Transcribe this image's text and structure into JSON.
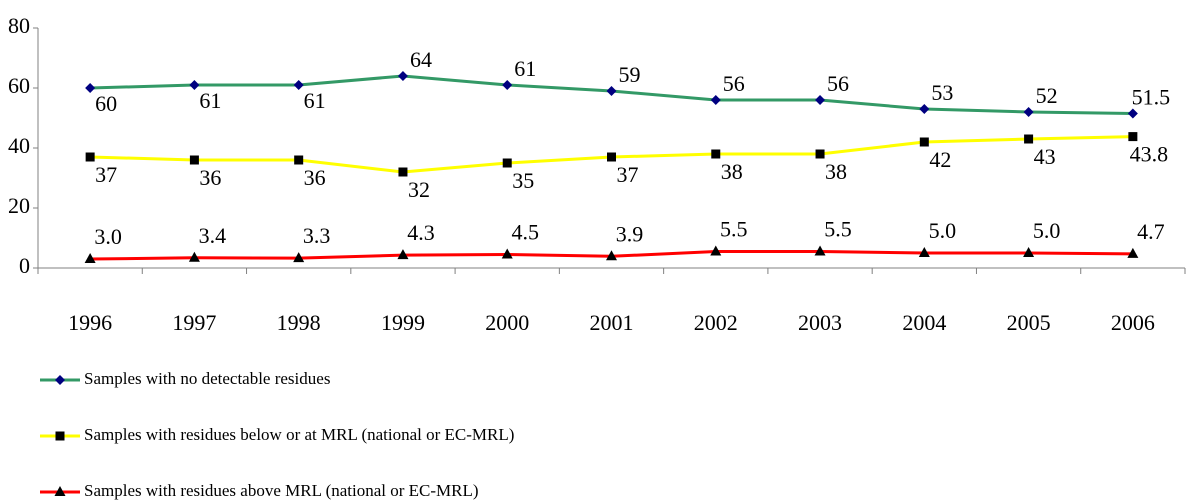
{
  "chart_data": {
    "type": "line",
    "categories": [
      "1996",
      "1997",
      "1998",
      "1999",
      "2000",
      "2001",
      "2002",
      "2003",
      "2004",
      "2005",
      "2006"
    ],
    "series": [
      {
        "name": "Samples with no detectable residues",
        "color": "#339966",
        "marker": "diamond",
        "marker_color": "#000080",
        "values": [
          60,
          61,
          61,
          64,
          61,
          59,
          56,
          56,
          53,
          52,
          51.5
        ]
      },
      {
        "name": "Samples with residues below or at MRL (national or EC-MRL)",
        "color": "#ffff00",
        "marker": "square",
        "marker_color": "#000000",
        "values": [
          37,
          36,
          36,
          32,
          35,
          37,
          38,
          38,
          42,
          43,
          43.8
        ]
      },
      {
        "name": "Samples with residues above MRL (national or EC-MRL)",
        "color": "#ff0000",
        "marker": "triangle",
        "marker_color": "#000000",
        "values": [
          3,
          3.4,
          3.3,
          4.3,
          4.5,
          3.9,
          5.5,
          5.5,
          5,
          5,
          4.7
        ],
        "value_labels": [
          "3.0",
          "3.4",
          "3.3",
          "4.3",
          "4.5",
          "3.9",
          "5.5",
          "5.5",
          "5.0",
          "5.0",
          "4.7"
        ]
      }
    ],
    "ylim": [
      0,
      80
    ],
    "yticks": [
      0,
      20,
      40,
      60,
      80
    ],
    "grid": false,
    "legend": "bottom"
  }
}
